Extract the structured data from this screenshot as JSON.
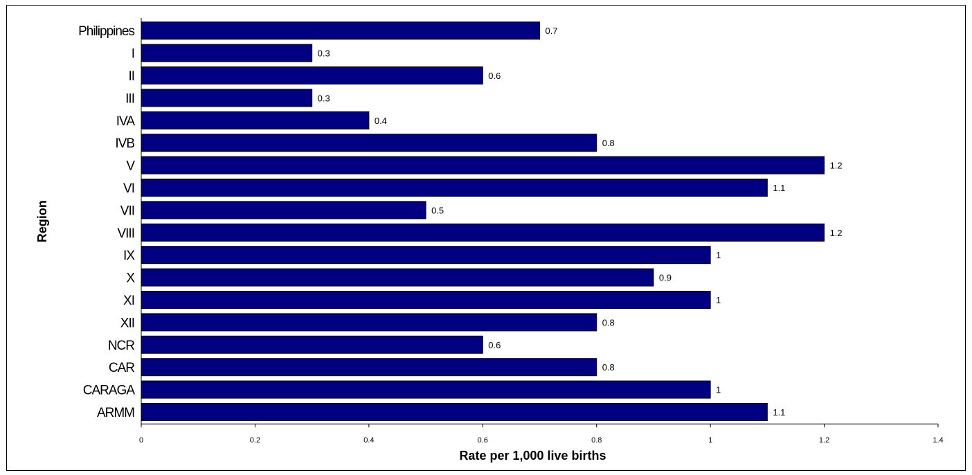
{
  "chart_data": {
    "type": "bar",
    "orientation": "horizontal",
    "categories": [
      "Philippines",
      "I",
      "II",
      "III",
      "IVA",
      "IVB",
      "V",
      "VI",
      "VII",
      "VIII",
      "IX",
      "X",
      "XI",
      "XII",
      "NCR",
      "CAR",
      "CARAGA",
      "ARMM"
    ],
    "values": [
      0.7,
      0.3,
      0.6,
      0.3,
      0.4,
      0.8,
      1.2,
      1.1,
      0.5,
      1.2,
      1,
      0.9,
      1,
      0.8,
      0.6,
      0.8,
      1,
      1.1
    ],
    "data_labels": [
      "0.7",
      "0.3",
      "0.6",
      "0.3",
      "0.4",
      "0.8",
      "1.2",
      "1.1",
      "0.5",
      "1.2",
      "1",
      "0.9",
      "1",
      "0.8",
      "0.6",
      "0.8",
      "1",
      "1.1"
    ],
    "xlabel": "Rate per 1,000 live births",
    "ylabel": "Region",
    "xlim": [
      0,
      1.4
    ],
    "xticks": [
      "0",
      "0.2",
      "0.4",
      "0.6",
      "0.8",
      "1",
      "1.2",
      "1.4"
    ],
    "grid": false,
    "legend": "none",
    "bar_color": "#000080"
  }
}
